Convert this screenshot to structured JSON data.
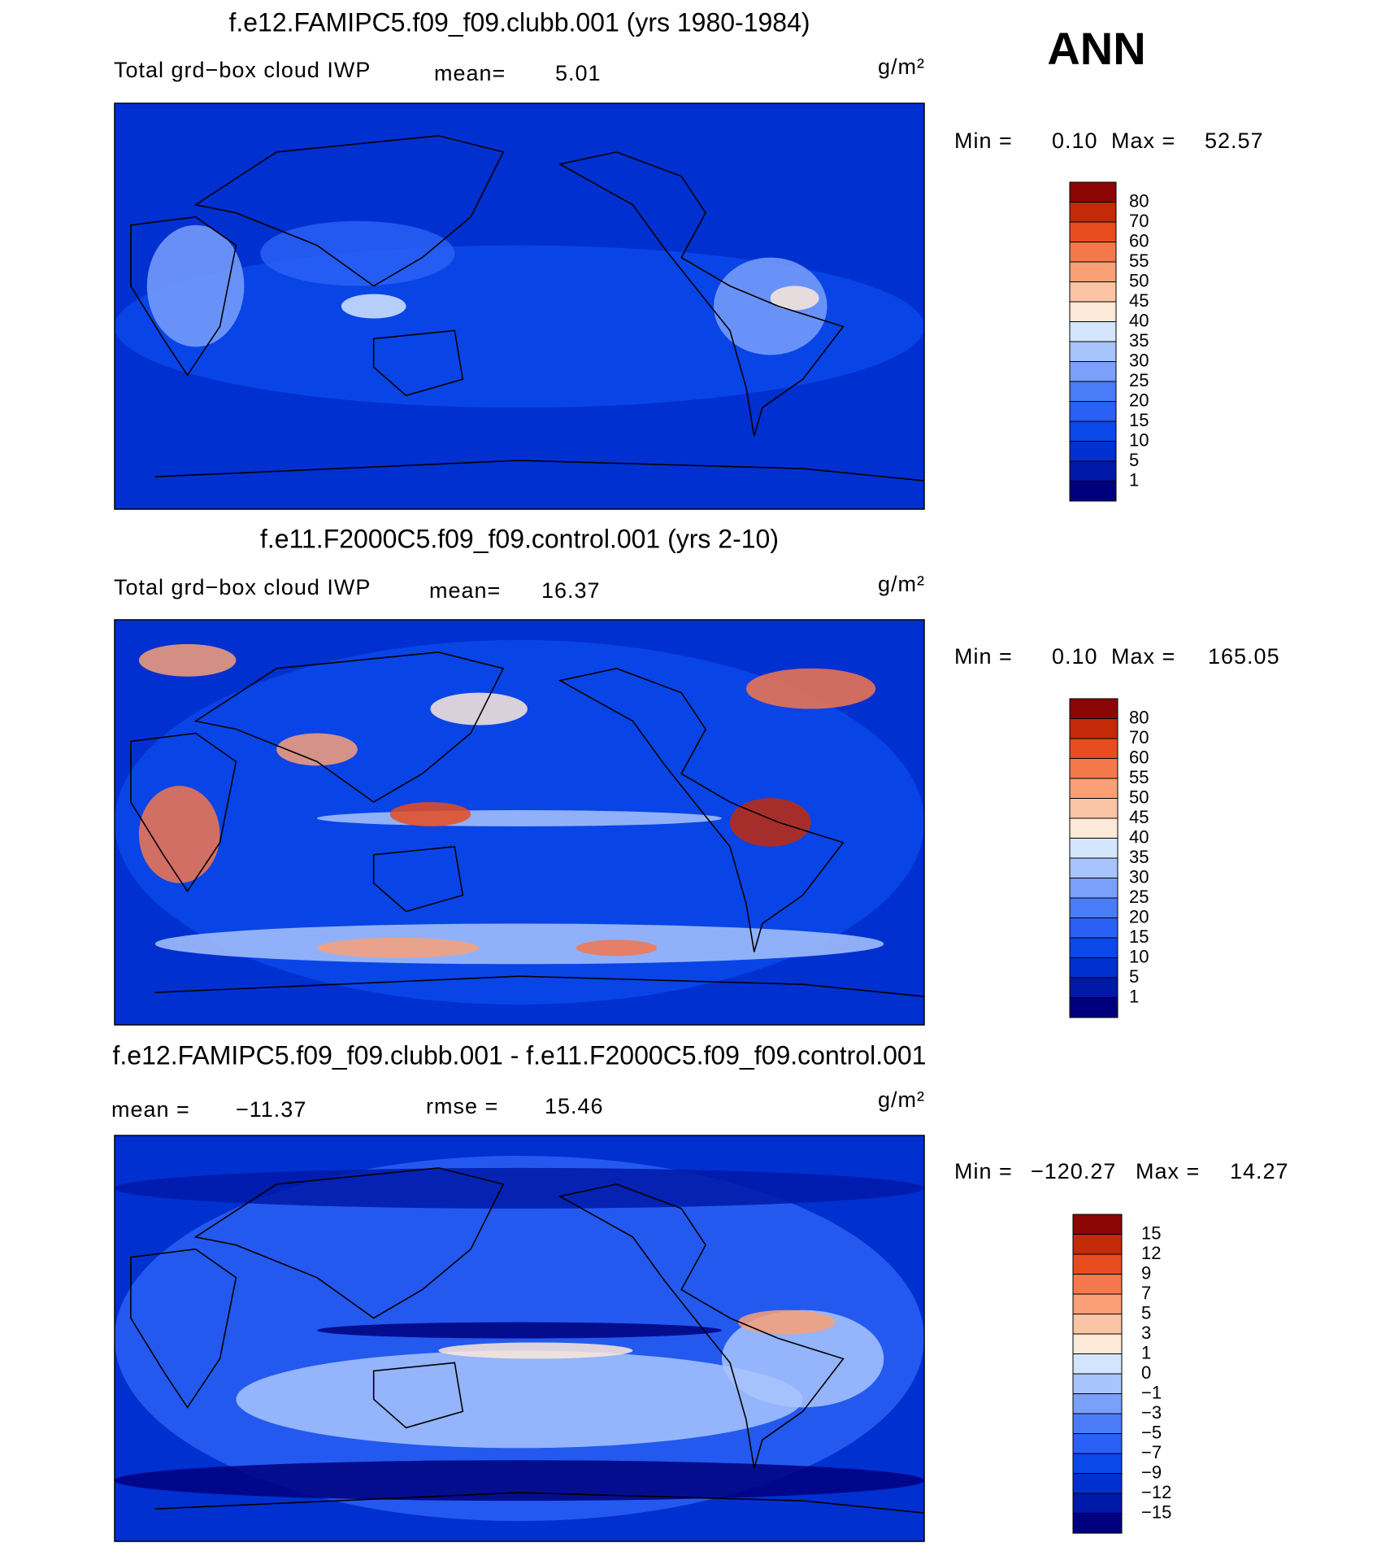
{
  "chart_data": [
    {
      "type": "contour-map",
      "title": "f.e12.FAMIPC5.f09_f09.clubb.001 (yrs 1980-1984)",
      "variable": "Total grd−box cloud IWP",
      "mean_label": "mean=",
      "mean": "5.01",
      "units": "g/m²",
      "min_label": "Min =",
      "min": "0.10",
      "max_label": "Max =",
      "max": "52.57",
      "levels": [
        80,
        70,
        60,
        55,
        50,
        45,
        40,
        35,
        30,
        25,
        20,
        15,
        10,
        5,
        1
      ],
      "colors": [
        "#8c0606",
        "#c22a08",
        "#e84c1e",
        "#f5774c",
        "#f9a077",
        "#fbc4a4",
        "#fde9d8",
        "#d4e6fe",
        "#a8c4fd",
        "#7aa0fb",
        "#4a7cf8",
        "#2a60f5",
        "#0a48ea",
        "#0030d0",
        "#0019a8",
        "#00007e"
      ]
    },
    {
      "type": "contour-map",
      "title": "f.e11.F2000C5.f09_f09.control.001 (yrs 2-10)",
      "variable": "Total grd−box cloud IWP",
      "mean_label": "mean=",
      "mean": "16.37",
      "units": "g/m²",
      "min_label": "Min =",
      "min": "0.10",
      "max_label": "Max =",
      "max": "165.05",
      "levels": [
        80,
        70,
        60,
        55,
        50,
        45,
        40,
        35,
        30,
        25,
        20,
        15,
        10,
        5,
        1
      ],
      "colors": [
        "#8c0606",
        "#c22a08",
        "#e84c1e",
        "#f5774c",
        "#f9a077",
        "#fbc4a4",
        "#fde9d8",
        "#d4e6fe",
        "#a8c4fd",
        "#7aa0fb",
        "#4a7cf8",
        "#2a60f5",
        "#0a48ea",
        "#0030d0",
        "#0019a8",
        "#00007e"
      ]
    },
    {
      "type": "contour-map",
      "title": "f.e12.FAMIPC5.f09_f09.clubb.001 - f.e11.F2000C5.f09_f09.control.001",
      "mean_label": "mean =",
      "mean": "−11.37",
      "rmse_label": "rmse =",
      "rmse": "15.46",
      "units": "g/m²",
      "min_label": "Min =",
      "min": "−120.27",
      "max_label": "Max =",
      "max": "14.27",
      "levels": [
        15,
        12,
        9,
        7,
        5,
        3,
        1,
        0,
        {
          "value": -1,
          "label": "−1"
        },
        {
          "value": -3,
          "label": "−3"
        },
        {
          "value": -5,
          "label": "−5"
        },
        {
          "value": -7,
          "label": "−7"
        },
        {
          "value": -9,
          "label": "−9"
        },
        {
          "value": -12,
          "label": "−12"
        },
        {
          "value": -15,
          "label": "−15"
        }
      ],
      "colors": [
        "#8c0606",
        "#c22a08",
        "#e84c1e",
        "#f5774c",
        "#f9a077",
        "#fbc4a4",
        "#fde9d8",
        "#d4e6fe",
        "#a8c4fd",
        "#7aa0fb",
        "#4a7cf8",
        "#2a60f5",
        "#0a48ea",
        "#0030d0",
        "#0019a8",
        "#00007e"
      ]
    }
  ],
  "season": "ANN"
}
